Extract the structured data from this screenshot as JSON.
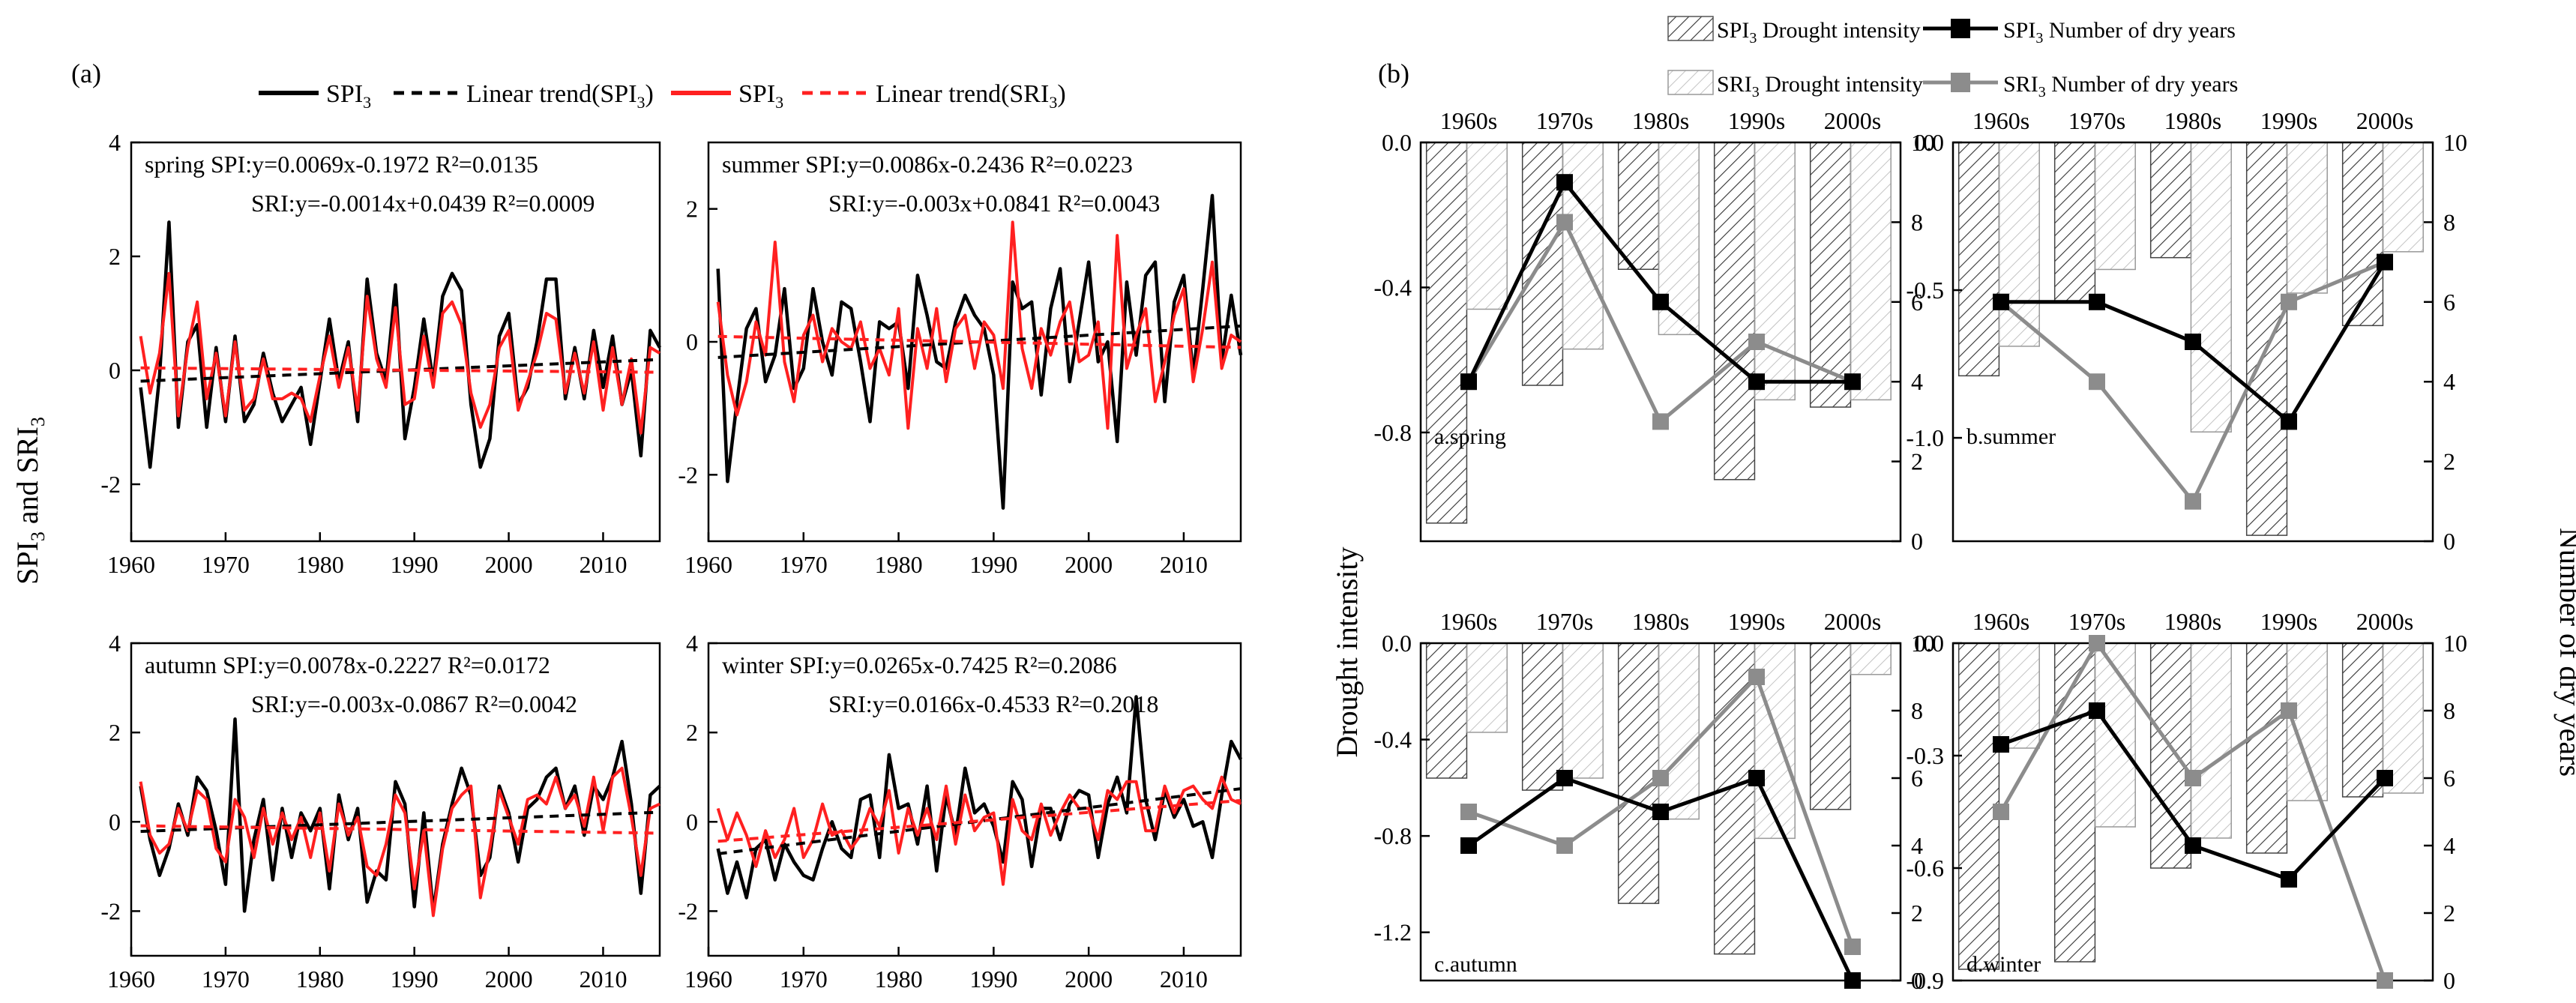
{
  "panel_a": {
    "label": "(a)",
    "ylabel": "SPI3 and SRI3",
    "legend": [
      "SPI3",
      "Linear trend(SPI3)",
      "SPI3",
      "Linear trend(SRI3)"
    ],
    "colors": {
      "spi": "#000000",
      "sri": "#ff2020"
    }
  },
  "panel_b": {
    "label": "(b)",
    "ylabel_left": "Drought intensity",
    "ylabel_right": "Number of dry years",
    "legend": [
      "SPI3 Drought intensity",
      "SPI3 Number of dry years",
      "SRI3 Drought intensity",
      "SRI3 Number of dry years"
    ],
    "colors": {
      "spi": "#000000",
      "sri": "#8c8c8c"
    }
  },
  "chart_data": [
    {
      "type": "line",
      "panel": "a-spring",
      "xlim": [
        1960,
        2016
      ],
      "ylim": [
        -3,
        4
      ],
      "xticks": [
        1960,
        1970,
        1980,
        1990,
        2000,
        2010
      ],
      "yticks": [
        -2,
        0,
        2,
        4
      ],
      "annotations": [
        "spring SPI:y=0.0069x-0.1972  R²=0.0135",
        "SRI:y=-0.0014x+0.0439 R²=0.0009"
      ],
      "x_start": 1961,
      "series": [
        {
          "name": "SPI3",
          "values": [
            -0.3,
            -1.7,
            -0.1,
            2.6,
            -1.0,
            0.5,
            0.8,
            -1.0,
            0.4,
            -0.9,
            0.6,
            -0.9,
            -0.6,
            0.3,
            -0.4,
            -0.9,
            -0.6,
            -0.3,
            -1.3,
            -0.2,
            0.9,
            -0.2,
            0.5,
            -0.9,
            1.6,
            0.3,
            -0.2,
            1.5,
            -1.2,
            -0.3,
            0.9,
            -0.2,
            1.3,
            1.7,
            1.4,
            -0.6,
            -1.7,
            -1.2,
            0.6,
            1.0,
            -0.6,
            -0.3,
            0.5,
            1.6,
            1.6,
            -0.5,
            0.4,
            -0.5,
            0.7,
            -0.3,
            0.6,
            -0.6,
            0.0,
            -1.5,
            0.7,
            0.4
          ]
        },
        {
          "name": "SRI3",
          "values": [
            0.6,
            -0.4,
            0.3,
            1.7,
            -0.8,
            0.4,
            1.2,
            -0.5,
            0.3,
            -0.8,
            0.5,
            -0.7,
            -0.5,
            0.2,
            -0.5,
            -0.5,
            -0.4,
            -0.5,
            -0.9,
            -0.1,
            0.6,
            -0.3,
            0.4,
            -0.7,
            1.3,
            0.2,
            -0.3,
            1.1,
            -0.6,
            -0.5,
            0.6,
            -0.3,
            1.0,
            1.2,
            0.8,
            -0.4,
            -1.0,
            -0.6,
            0.4,
            0.7,
            -0.7,
            -0.2,
            0.3,
            1.0,
            0.9,
            -0.4,
            0.3,
            -0.4,
            0.5,
            -0.7,
            0.4,
            -0.6,
            0.2,
            -1.1,
            0.4,
            0.3
          ]
        }
      ],
      "trends": [
        {
          "name": "Linear trend(SPI3)",
          "slope": 0.0069,
          "intercept": -0.1972
        },
        {
          "name": "Linear trend(SRI3)",
          "slope": -0.0014,
          "intercept": 0.0439
        }
      ]
    },
    {
      "type": "line",
      "panel": "a-summer",
      "xlim": [
        1960,
        2016
      ],
      "ylim": [
        -3,
        3
      ],
      "xticks": [
        1960,
        1970,
        1980,
        1990,
        2000,
        2010
      ],
      "yticks": [
        -2,
        0,
        2
      ],
      "annotations": [
        "summer SPI:y=0.0086x-0.2436  R²=0.0223",
        "SRI:y=-0.003x+0.0841  R²=0.0043"
      ],
      "x_start": 1961,
      "series": [
        {
          "name": "SPI3",
          "values": [
            1.1,
            -2.1,
            -0.9,
            0.2,
            0.5,
            -0.6,
            -0.2,
            0.8,
            -0.7,
            -0.4,
            0.8,
            0.0,
            -0.5,
            0.6,
            0.5,
            -0.3,
            -1.2,
            0.3,
            0.2,
            0.3,
            -0.7,
            1.0,
            0.4,
            -0.3,
            -0.4,
            0.3,
            0.7,
            0.4,
            0.2,
            -0.5,
            -2.5,
            0.9,
            0.5,
            0.6,
            -0.8,
            0.5,
            1.1,
            -0.6,
            0.3,
            1.2,
            -0.3,
            0.0,
            -1.5,
            0.9,
            -0.2,
            1.0,
            1.2,
            -0.9,
            0.6,
            1.0,
            -0.5,
            0.8,
            2.2,
            -0.3,
            0.7,
            -0.2
          ]
        },
        {
          "name": "SRI3",
          "values": [
            0.6,
            -0.5,
            -1.1,
            -0.6,
            0.3,
            -0.2,
            1.5,
            -0.3,
            -0.9,
            0.1,
            0.4,
            -0.3,
            0.2,
            0.0,
            -0.1,
            0.3,
            -0.4,
            -0.1,
            -0.5,
            0.5,
            -1.3,
            0.2,
            -0.4,
            0.5,
            -0.6,
            0.2,
            0.4,
            -0.4,
            0.3,
            0.1,
            -0.7,
            1.8,
            -0.1,
            -0.7,
            0.2,
            -0.2,
            0.3,
            0.6,
            -0.3,
            -0.2,
            0.3,
            -1.3,
            1.6,
            -0.4,
            0.1,
            0.5,
            -0.9,
            -0.3,
            0.4,
            0.8,
            -0.6,
            0.2,
            1.2,
            -0.4,
            0.1,
            0.0
          ]
        }
      ],
      "trends": [
        {
          "name": "Linear trend(SPI3)",
          "slope": 0.0086,
          "intercept": -0.2436
        },
        {
          "name": "Linear trend(SRI3)",
          "slope": -0.003,
          "intercept": 0.0841
        }
      ]
    },
    {
      "type": "line",
      "panel": "a-autumn",
      "xlim": [
        1960,
        2016
      ],
      "ylim": [
        -3,
        4
      ],
      "xticks": [
        1960,
        1970,
        1980,
        1990,
        2000,
        2010
      ],
      "yticks": [
        -2,
        0,
        2,
        4
      ],
      "annotations": [
        "autumn SPI:y=0.0078x-0.2227  R²=0.0172",
        "SRI:y=-0.003x-0.0867  R²=0.0042"
      ],
      "x_start": 1961,
      "series": [
        {
          "name": "SPI3",
          "values": [
            0.8,
            -0.4,
            -1.2,
            -0.6,
            0.4,
            -0.3,
            1.0,
            0.7,
            -0.2,
            -1.4,
            2.3,
            -2.0,
            -0.4,
            0.5,
            -1.3,
            0.3,
            -0.8,
            0.2,
            -0.2,
            0.3,
            -1.5,
            0.6,
            -0.4,
            0.3,
            -1.8,
            -1.1,
            -1.3,
            0.9,
            0.4,
            -1.9,
            0.2,
            -2.0,
            -0.5,
            0.4,
            1.2,
            0.6,
            -1.2,
            -0.8,
            0.8,
            0.2,
            -0.9,
            0.3,
            0.5,
            1.0,
            1.2,
            0.3,
            0.8,
            -0.3,
            0.8,
            0.5,
            1.0,
            1.8,
            0.4,
            -1.6,
            0.6,
            0.8
          ]
        },
        {
          "name": "SRI3",
          "values": [
            0.9,
            -0.3,
            -0.7,
            -0.5,
            0.3,
            -0.2,
            0.7,
            0.5,
            -0.6,
            -0.9,
            0.5,
            0.1,
            -0.8,
            0.3,
            -0.5,
            0.2,
            -0.4,
            0.1,
            -0.8,
            0.2,
            -1.1,
            0.4,
            -0.3,
            0.1,
            -1.0,
            -1.2,
            -0.5,
            0.6,
            0.2,
            -1.5,
            -0.2,
            -2.1,
            -0.6,
            0.3,
            0.6,
            0.8,
            -1.7,
            -0.6,
            0.7,
            0.1,
            -0.5,
            0.5,
            0.6,
            0.4,
            1.0,
            0.3,
            0.6,
            -0.1,
            1.0,
            -0.2,
            1.0,
            1.2,
            0.1,
            -1.2,
            0.3,
            0.4
          ]
        }
      ],
      "trends": [
        {
          "name": "Linear trend(SPI3)",
          "slope": 0.0078,
          "intercept": -0.2227
        },
        {
          "name": "Linear trend(SRI3)",
          "slope": -0.003,
          "intercept": -0.0867
        }
      ]
    },
    {
      "type": "line",
      "panel": "a-winter",
      "xlim": [
        1960,
        2016
      ],
      "ylim": [
        -3,
        4
      ],
      "xticks": [
        1960,
        1970,
        1980,
        1990,
        2000,
        2010
      ],
      "yticks": [
        -2,
        0,
        2,
        4
      ],
      "annotations": [
        "winter SPI:y=0.0265x-0.7425  R²=0.2086",
        "SRI:y=0.0166x-0.4533  R²=0.2018"
      ],
      "x_start": 1961,
      "series": [
        {
          "name": "SPI3",
          "values": [
            -0.6,
            -1.6,
            -0.9,
            -1.7,
            -0.6,
            -0.4,
            -1.3,
            -0.5,
            -0.9,
            -1.2,
            -1.3,
            -0.6,
            0.0,
            -0.6,
            -0.8,
            0.5,
            0.6,
            -0.8,
            1.5,
            0.3,
            0.4,
            -0.5,
            0.8,
            -1.1,
            0.6,
            -0.3,
            1.2,
            0.2,
            0.4,
            -0.1,
            -0.9,
            0.9,
            0.5,
            -1.0,
            0.3,
            0.3,
            -0.4,
            0.4,
            0.7,
            0.6,
            -0.8,
            0.4,
            1.0,
            0.2,
            2.8,
            0.5,
            -0.4,
            0.7,
            0.1,
            0.5,
            -0.1,
            0.0,
            -0.8,
            0.6,
            1.8,
            1.4
          ]
        },
        {
          "name": "SRI3",
          "values": [
            0.3,
            -0.4,
            0.2,
            -0.3,
            -1.0,
            -0.2,
            -0.8,
            -0.4,
            0.3,
            -0.8,
            -0.4,
            0.4,
            -0.3,
            -0.2,
            -0.6,
            -0.3,
            0.3,
            -0.1,
            0.7,
            -0.7,
            0.3,
            -0.3,
            0.3,
            -0.4,
            0.8,
            -0.5,
            0.6,
            -0.2,
            0.1,
            0.2,
            -1.4,
            0.5,
            -0.2,
            -0.4,
            0.4,
            -0.3,
            0.2,
            0.6,
            0.3,
            0.3,
            -0.4,
            0.7,
            0.5,
            0.9,
            0.9,
            -0.2,
            -0.2,
            0.8,
            0.2,
            0.7,
            0.8,
            0.5,
            0.3,
            1.0,
            0.5,
            0.4
          ]
        }
      ],
      "trends": [
        {
          "name": "Linear trend(SPI3)",
          "slope": 0.0265,
          "intercept": -0.7425
        },
        {
          "name": "Linear trend(SRI3)",
          "slope": 0.0166,
          "intercept": -0.4533
        }
      ]
    },
    {
      "type": "bar",
      "panel": "b-spring",
      "label": "a.spring",
      "categories": [
        "1960s",
        "1970s",
        "1980s",
        "1990s",
        "2000s"
      ],
      "ylim": [
        -1.1,
        0.0
      ],
      "yticks": [
        0.0,
        -0.4,
        -0.8
      ],
      "y2lim": [
        0,
        10
      ],
      "y2ticks": [
        0,
        2,
        4,
        6,
        8,
        10
      ],
      "series": [
        {
          "name": "SPI3 Drought intensity",
          "values": [
            -1.05,
            -0.67,
            -0.35,
            -0.93,
            -0.73
          ]
        },
        {
          "name": "SRI3 Drought intensity",
          "values": [
            -0.46,
            -0.57,
            -0.53,
            -0.71,
            -0.71
          ]
        },
        {
          "name": "SPI3 Number of dry years",
          "values": [
            4,
            9,
            6,
            4,
            4
          ]
        },
        {
          "name": "SRI3 Number of dry years",
          "values": [
            4,
            8,
            3,
            5,
            4
          ]
        }
      ]
    },
    {
      "type": "bar",
      "panel": "b-summer",
      "label": "b.summer",
      "categories": [
        "1960s",
        "1970s",
        "1980s",
        "1990s",
        "2000s"
      ],
      "ylim": [
        -1.35,
        0.0
      ],
      "yticks": [
        0.0,
        -0.5,
        -1.0
      ],
      "y2lim": [
        0,
        10
      ],
      "y2ticks": [
        0,
        2,
        4,
        6,
        8,
        10
      ],
      "series": [
        {
          "name": "SPI3 Drought intensity",
          "values": [
            -0.79,
            -0.54,
            -0.39,
            -1.33,
            -0.62
          ]
        },
        {
          "name": "SRI3 Drought intensity",
          "values": [
            -0.69,
            -0.43,
            -0.98,
            -0.51,
            -0.37
          ]
        },
        {
          "name": "SPI3 Number of dry years",
          "values": [
            6,
            6,
            5,
            3,
            7
          ]
        },
        {
          "name": "SRI3 Number of dry years",
          "values": [
            6,
            4,
            1,
            6,
            7
          ]
        }
      ]
    },
    {
      "type": "bar",
      "panel": "b-autumn",
      "label": "c.autumn",
      "categories": [
        "1960s",
        "1970s",
        "1980s",
        "1990s",
        "2000s"
      ],
      "ylim": [
        -1.4,
        0.0
      ],
      "yticks": [
        0.0,
        -0.4,
        -0.8,
        -1.2
      ],
      "y2lim": [
        0,
        10
      ],
      "y2ticks": [
        0,
        2,
        4,
        6,
        8,
        10
      ],
      "series": [
        {
          "name": "SPI3 Drought intensity",
          "values": [
            -0.56,
            -0.61,
            -1.08,
            -1.29,
            -0.69
          ]
        },
        {
          "name": "SRI3 Drought intensity",
          "values": [
            -0.37,
            -0.56,
            -0.73,
            -0.81,
            -0.13
          ]
        },
        {
          "name": "SPI3 Number of dry years",
          "values": [
            4,
            6,
            5,
            6,
            0
          ]
        },
        {
          "name": "SRI3 Number of dry years",
          "values": [
            5,
            4,
            6,
            9,
            1
          ]
        }
      ]
    },
    {
      "type": "bar",
      "panel": "b-winter",
      "label": "d.winter",
      "categories": [
        "1960s",
        "1970s",
        "1980s",
        "1990s",
        "2000s"
      ],
      "ylim": [
        -0.9,
        0.0
      ],
      "yticks": [
        0.0,
        -0.3,
        -0.6,
        -0.9
      ],
      "y2lim": [
        0,
        10
      ],
      "y2ticks": [
        0,
        2,
        4,
        6,
        8,
        10
      ],
      "series": [
        {
          "name": "SPI3 Drought intensity",
          "values": [
            -0.87,
            -0.85,
            -0.6,
            -0.56,
            -0.41
          ]
        },
        {
          "name": "SRI3 Drought intensity",
          "values": [
            -0.28,
            -0.49,
            -0.52,
            -0.42,
            -0.4
          ]
        },
        {
          "name": "SPI3 Number of dry years",
          "values": [
            7,
            8,
            4,
            3,
            6
          ]
        },
        {
          "name": "SRI3 Number of dry years",
          "values": [
            5,
            10,
            6,
            8,
            0
          ]
        }
      ]
    }
  ]
}
